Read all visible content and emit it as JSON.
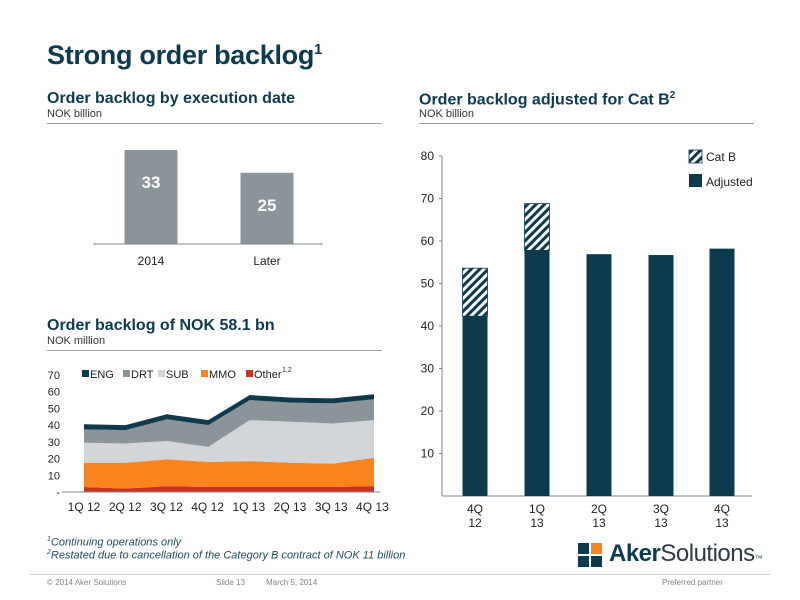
{
  "slide": {
    "title": "Strong order backlog",
    "title_sup": "1"
  },
  "chart_data": [
    {
      "id": "execution",
      "type": "bar",
      "title": "Order backlog by execution date",
      "subtitle": "NOK billion",
      "categories": [
        "2014",
        "Later"
      ],
      "values": [
        33,
        25
      ],
      "data_labels": [
        "33",
        "25"
      ],
      "color": "#8a9499"
    },
    {
      "id": "segments",
      "type": "area",
      "title": "Order backlog of NOK 58.1 bn",
      "subtitle": "NOK million",
      "categories": [
        "1Q 12",
        "2Q 12",
        "3Q 12",
        "4Q 12",
        "1Q 13",
        "2Q 13",
        "3Q 13",
        "4Q 13"
      ],
      "stacked": true,
      "series": [
        {
          "name": "Other",
          "color": "#c8321f",
          "values": [
            3,
            2,
            3.5,
            3,
            3,
            3,
            3,
            3.5
          ]
        },
        {
          "name": "MMO",
          "color": "#f7841f",
          "values": [
            14.5,
            15.5,
            16,
            15,
            15.5,
            14.5,
            14,
            17
          ]
        },
        {
          "name": "SUB",
          "color": "#d2d6d9",
          "values": [
            12,
            11.5,
            11,
            9,
            24.5,
            24.5,
            24,
            22.5
          ]
        },
        {
          "name": "DRT",
          "color": "#8a9499",
          "values": [
            8,
            8,
            13,
            13,
            12,
            11.5,
            12,
            12.5
          ]
        },
        {
          "name": "ENG",
          "color": "#0d3b4d",
          "values": [
            3,
            3,
            3,
            3,
            3,
            3,
            3,
            3
          ]
        }
      ],
      "legend_order": [
        "ENG",
        "DRT",
        "SUB",
        "MMO",
        "Other"
      ],
      "legend_other_sup": "1,2",
      "y_ticks": [
        "-",
        "10",
        "20",
        "30",
        "40",
        "50",
        "60",
        "70"
      ],
      "ylim": [
        0,
        70
      ]
    },
    {
      "id": "adjusted",
      "type": "bar",
      "stacked": true,
      "title": "Order backlog adjusted for Cat B",
      "title_sup": "2",
      "subtitle": "NOK billion",
      "categories": [
        [
          "4Q",
          "12"
        ],
        [
          "1Q",
          "13"
        ],
        [
          "2Q",
          "13"
        ],
        [
          "3Q",
          "13"
        ],
        [
          "4Q",
          "13"
        ]
      ],
      "series": [
        {
          "name": "Adjusted",
          "color": "#0d3b4d",
          "values": [
            42.3,
            57.8,
            56.9,
            56.7,
            58.2
          ]
        },
        {
          "name": "Cat B",
          "color": "#9fb6c7",
          "pattern": "hatched",
          "values": [
            11.3,
            11.0,
            0,
            0,
            0
          ]
        }
      ],
      "y_ticks": [
        "10",
        "20",
        "30",
        "40",
        "50",
        "60",
        "70",
        "80"
      ],
      "ylim": [
        0,
        80
      ],
      "legend_position": "top-right"
    }
  ],
  "footnotes": {
    "note1_sup": "1",
    "note1": "Continuing operations only",
    "note2_sup": "2",
    "note2": "Restated due to cancellation of the Category B contract of NOK 11 billion"
  },
  "footer": {
    "copyright": "© 2014 Aker Solutions",
    "slide": "Slide 13",
    "date": "March 5, 2014",
    "tagline": "Preferred partner"
  },
  "logo": {
    "text_bold": "Aker",
    "text_regular": "Solutions",
    "tm": "™"
  }
}
